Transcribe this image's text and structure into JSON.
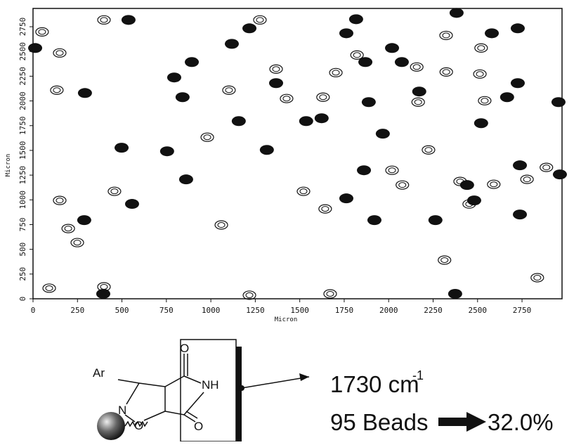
{
  "chart_data": {
    "type": "scatter",
    "xlabel": "Micron",
    "ylabel": "Micron",
    "xlim": [
      0,
      2975
    ],
    "ylim": [
      0,
      2935
    ],
    "xticks": [
      0,
      250,
      500,
      750,
      1000,
      1250,
      1500,
      1750,
      2000,
      2250,
      2500,
      2750
    ],
    "yticks": [
      0,
      250,
      500,
      750,
      1000,
      1250,
      1500,
      1750,
      2000,
      2250,
      2500,
      2750
    ],
    "series": [
      {
        "color": "#111111",
        "marker": "filled",
        "x": [
          12,
          537,
          1217,
          1817,
          1762,
          2382,
          2580,
          2726,
          1869,
          2019,
          2074,
          893,
          794,
          1118,
          1367,
          841,
          1157,
          1536,
          1623,
          1888,
          1967,
          2172,
          2666,
          2726,
          2955,
          292,
          498,
          754,
          1315,
          2520,
          2738,
          1861,
          1762,
          1920,
          2441,
          2263,
          2738,
          2963,
          557,
          288,
          395,
          2374,
          861,
          2481
        ],
        "values": [
          2535,
          2819,
          2734,
          2826,
          2684,
          2890,
          2684,
          2734,
          2393,
          2535,
          2393,
          2393,
          2237,
          2577,
          2180,
          2038,
          1796,
          1796,
          1825,
          1988,
          1669,
          2095,
          2038,
          2180,
          1988,
          2080,
          1527,
          1491,
          1505,
          1775,
          1349,
          1299,
          1015,
          795,
          1150,
          795,
          852,
          1257,
          959,
          795,
          50,
          50,
          1207,
          994
        ]
      },
      {
        "color": "#111111",
        "marker": "outline",
        "x": [
          51,
          150,
          134,
          399,
          1276,
          1367,
          1426,
          1631,
          1703,
          1822,
          2158,
          2166,
          2323,
          2520,
          2540,
          2513,
          2324,
          2224,
          2402,
          2453,
          2836,
          2778,
          1521,
          1643,
          458,
          150,
          198,
          249,
          399,
          91,
          1217,
          1671,
          2314,
          2591,
          2077,
          2019,
          2887,
          1059,
          980,
          1102
        ],
        "values": [
          2698,
          2485,
          2109,
          2819,
          2819,
          2322,
          2024,
          2038,
          2286,
          2464,
          2343,
          1988,
          2662,
          2535,
          2002,
          2272,
          2293,
          1505,
          1186,
          958,
          213,
          1207,
          1086,
          909,
          1086,
          994,
          710,
          568,
          121,
          107,
          36,
          50,
          391,
          1157,
          1150,
          1299,
          1328,
          746,
          1633,
          2109
        ]
      }
    ]
  },
  "structure": {
    "labels": [
      "Ar",
      "N",
      "O",
      "O",
      "NH",
      "O"
    ]
  },
  "annotation": {
    "wavenumber": "1730 cm",
    "exponent": "-1",
    "beads": "95 Beads",
    "percent": "32.0%"
  }
}
